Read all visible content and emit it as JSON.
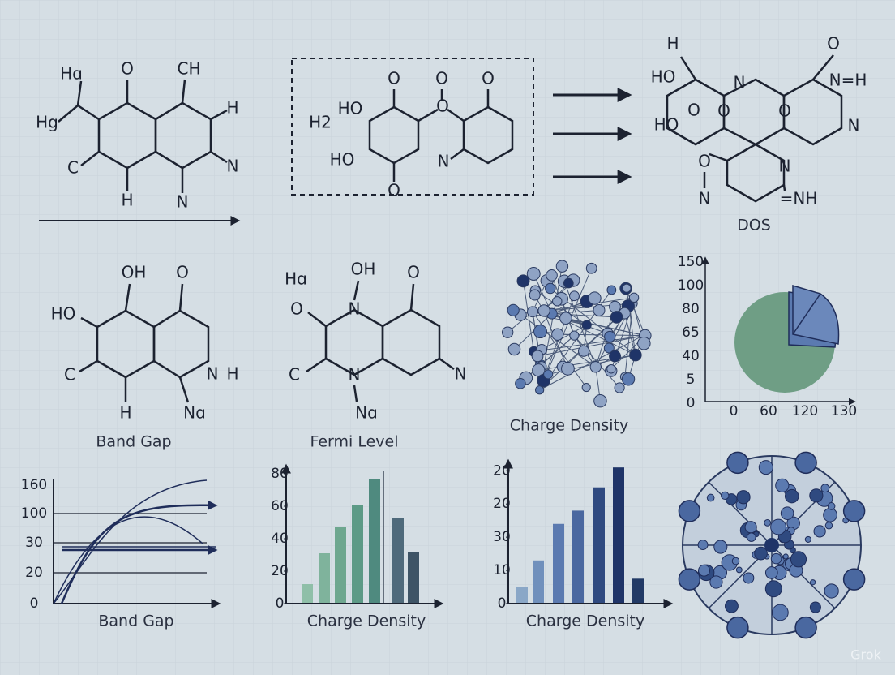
{
  "molecules": [
    {
      "labels": [
        "Hɑ",
        "Hg",
        "O",
        "CH",
        "H",
        "C",
        "N",
        "H",
        "N"
      ]
    },
    {
      "labels": [
        "H2",
        "O",
        "O",
        "O",
        "HO",
        "O",
        "HO",
        "N",
        "O"
      ]
    },
    {
      "labels": [
        "H",
        "HO",
        "N",
        "O",
        "N=H",
        "O",
        "HO",
        "O",
        "O",
        "N",
        "O",
        "N",
        "N",
        "=NH"
      ],
      "caption": "DOS"
    },
    {
      "labels": [
        "OH",
        "O",
        "HO",
        "C",
        "N",
        "H",
        "H",
        "Nɑ"
      ],
      "caption": "Band Gap"
    },
    {
      "labels": [
        "Hɑ",
        "OH",
        "O",
        "O",
        "N",
        "C",
        "N",
        "N",
        "Nɑ"
      ],
      "caption": "Fermi Level"
    }
  ],
  "network": {
    "caption": "Charge Density"
  },
  "pie_panel": {
    "yticks": [
      "150",
      "100",
      "80",
      "65",
      "40",
      "5",
      "0"
    ],
    "xticks": [
      "0",
      "60",
      "120",
      "130"
    ]
  },
  "line_panel": {
    "caption": "Band Gap",
    "yticks": [
      "160",
      "100",
      "30",
      "20",
      "0"
    ]
  },
  "bar_panels": [
    {
      "type": "bar",
      "caption": "Charge Density",
      "ylim": [
        0,
        85
      ],
      "yticks": [
        0,
        20,
        40,
        60,
        80
      ],
      "values": [
        12,
        31,
        47,
        61,
        77,
        53,
        32
      ],
      "colors": [
        "#8fbfa8",
        "#7fb39c",
        "#6ea78f",
        "#5c9a86",
        "#4f8a7f",
        "#4f6a7b",
        "#3e5466"
      ]
    },
    {
      "type": "bar",
      "caption": "Charge Density",
      "ylim": [
        0,
        43
      ],
      "yticks": [
        0,
        10,
        {
          "value": 20,
          "label": "30"
        },
        {
          "value": 30,
          "label": "20"
        },
        {
          "value": 40,
          "label": "20"
        }
      ],
      "values": [
        5,
        13,
        24,
        28,
        35,
        41,
        7.5
      ],
      "colors": [
        "#8aa7c7",
        "#7090bc",
        "#5b7ab0",
        "#4a68a0",
        "#2f4a80",
        "#1f3468",
        "#223a66"
      ]
    }
  ],
  "watermark": "Grok"
}
